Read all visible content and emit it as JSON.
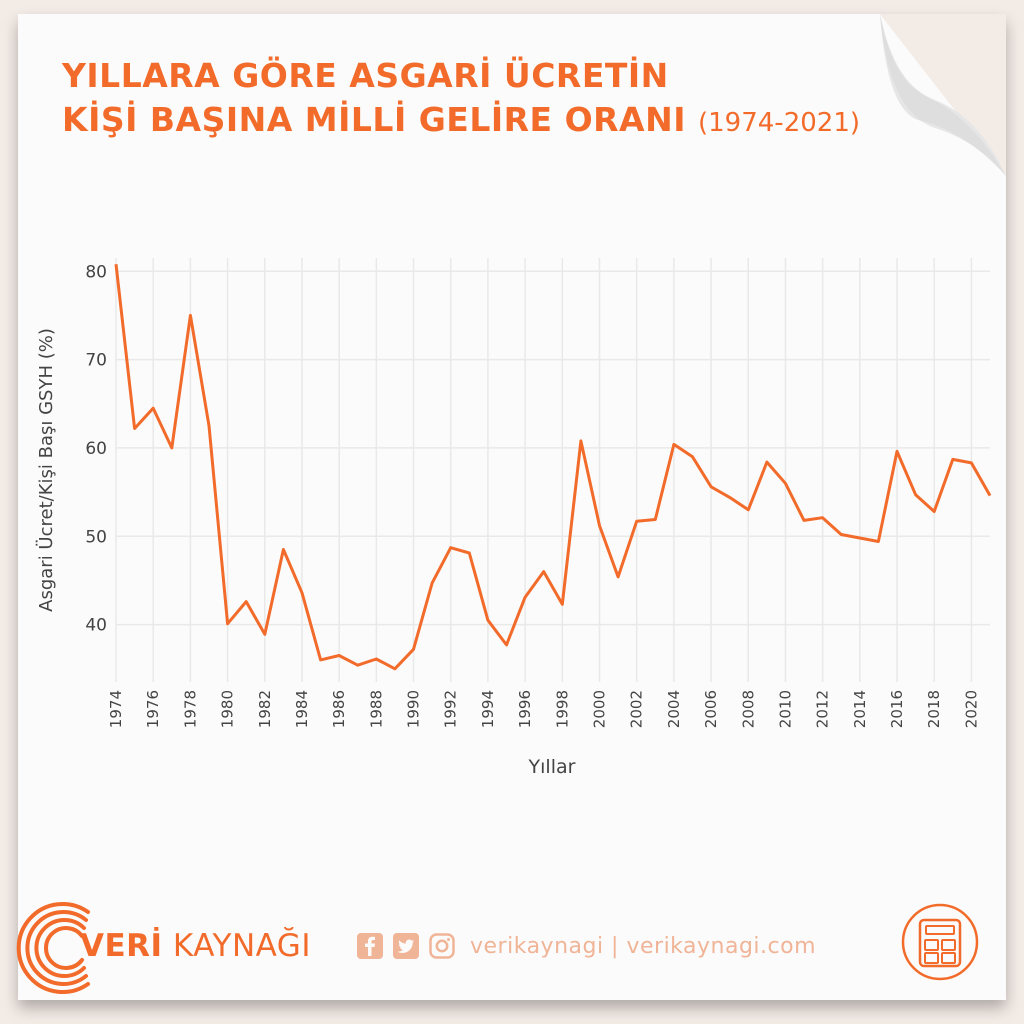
{
  "title": {
    "line1": "YILLARA GÖRE ASGARİ ÜCRETİN",
    "line2": "KİŞİ BAŞINA MİLLİ GELİRE ORANI",
    "period": "(1974-2021)"
  },
  "brand": {
    "part1": "VERİ",
    "part2": " KAYNAĞI"
  },
  "footer": {
    "handle": "verikaynagi | verikaynagi.com"
  },
  "colors": {
    "accent": "#f26b2a",
    "grid": "#e9e9e9",
    "text": "#444444"
  },
  "icons": [
    "facebook-icon",
    "twitter-icon",
    "instagram-icon",
    "calculator-icon",
    "signal-rings-icon"
  ],
  "chart_data": {
    "type": "line",
    "xlabel": "Yıllar",
    "ylabel": "Asgari Ücret/Kişi Başı GSYH (%)",
    "xlim": [
      1974,
      2021
    ],
    "ylim": [
      33.5,
      81.5
    ],
    "yticks": [
      40,
      50,
      60,
      70,
      80
    ],
    "xticks": [
      1974,
      1976,
      1978,
      1980,
      1982,
      1984,
      1986,
      1988,
      1990,
      1992,
      1994,
      1996,
      1998,
      2000,
      2002,
      2004,
      2006,
      2008,
      2010,
      2012,
      2014,
      2016,
      2018,
      2020
    ],
    "grid": true,
    "x": [
      1974,
      1975,
      1976,
      1977,
      1978,
      1979,
      1980,
      1981,
      1982,
      1983,
      1984,
      1985,
      1986,
      1987,
      1988,
      1989,
      1990,
      1991,
      1992,
      1993,
      1994,
      1995,
      1996,
      1997,
      1998,
      1999,
      2000,
      2001,
      2002,
      2003,
      2004,
      2005,
      2006,
      2007,
      2008,
      2009,
      2010,
      2011,
      2012,
      2013,
      2014,
      2015,
      2016,
      2017,
      2018,
      2019,
      2020,
      2021
    ],
    "y": [
      80.8,
      62.2,
      64.5,
      60.0,
      75.0,
      62.5,
      40.1,
      42.6,
      38.9,
      48.5,
      43.6,
      36.0,
      36.5,
      35.4,
      36.1,
      35.0,
      37.2,
      44.7,
      48.7,
      48.1,
      40.5,
      37.7,
      43.1,
      46.0,
      42.3,
      60.8,
      51.2,
      45.4,
      51.7,
      51.9,
      60.4,
      59.0,
      55.6,
      54.4,
      53.0,
      58.4,
      56.0,
      51.8,
      52.1,
      50.2,
      49.8,
      49.4,
      59.6,
      54.7,
      52.8,
      58.7,
      58.3,
      54.6
    ]
  }
}
